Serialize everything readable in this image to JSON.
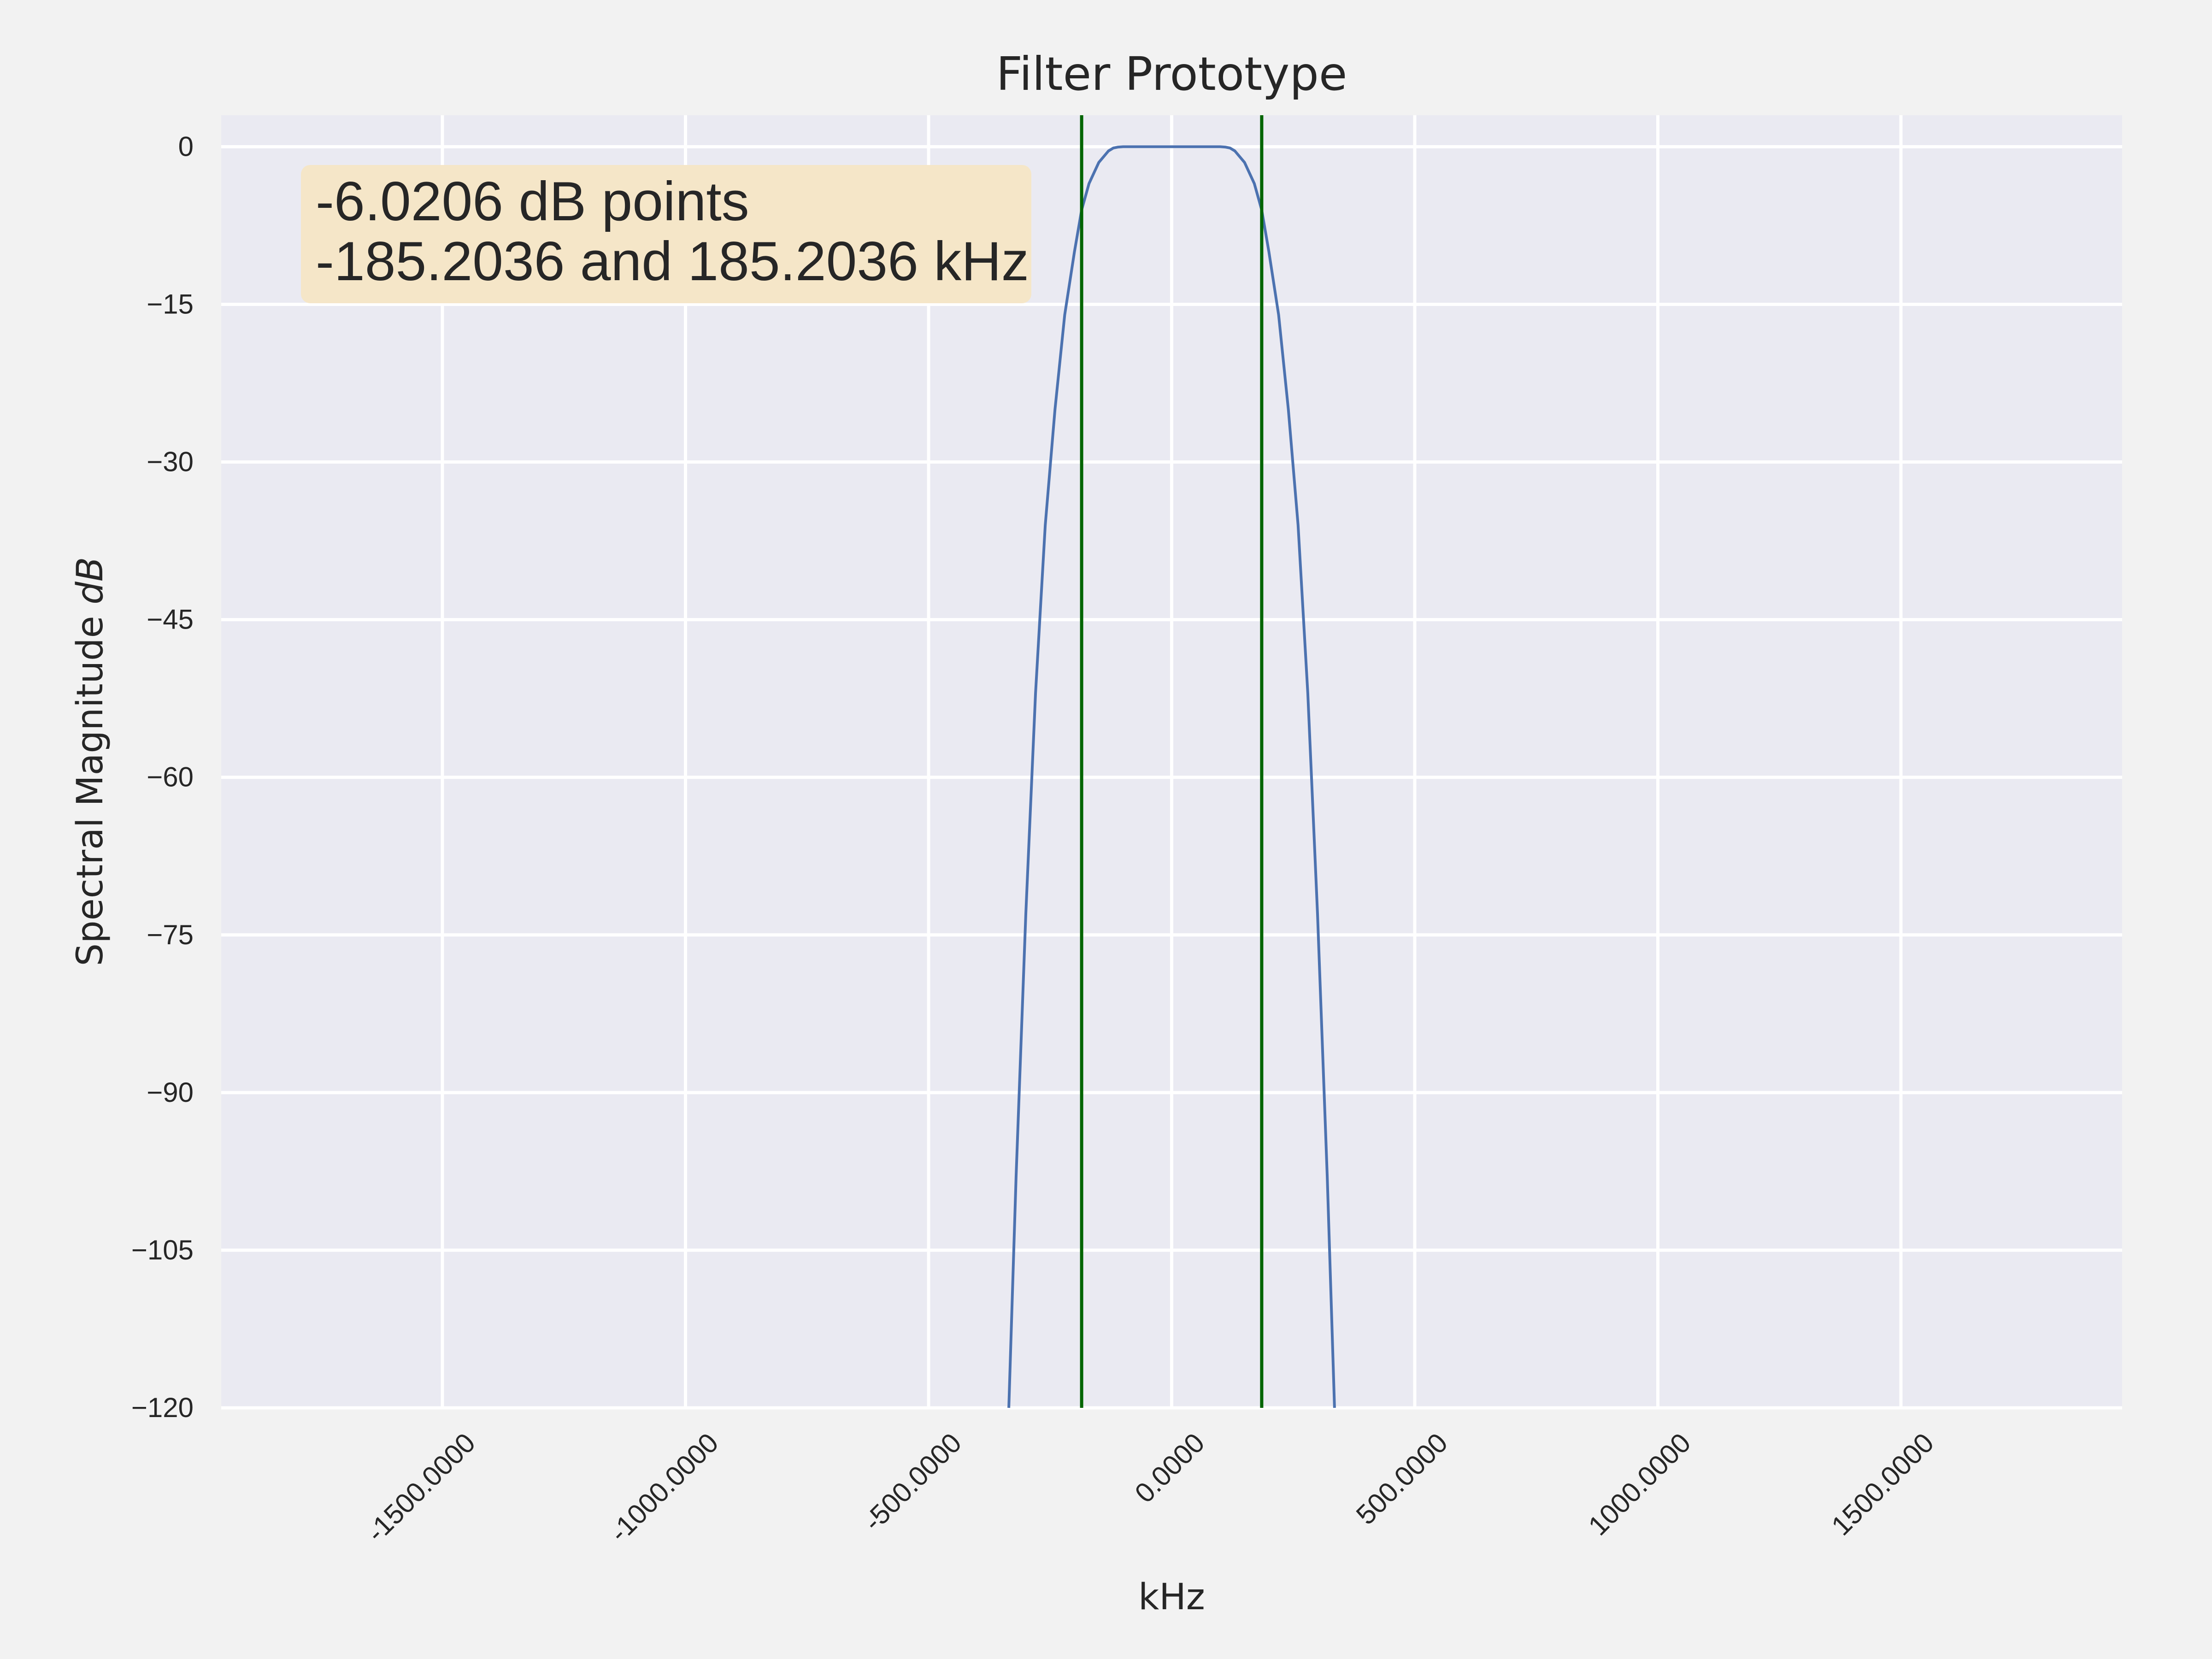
{
  "chart_data": {
    "type": "line",
    "title": "Filter Prototype",
    "xlabel": "kHz",
    "ylabel": "Spectral Magnitude",
    "ylabel_unit": "dB",
    "xlim": [
      -1955,
      1955
    ],
    "ylim": [
      -120,
      3
    ],
    "xticks": [
      -1500,
      -1000,
      -500,
      0,
      500,
      1000,
      1500
    ],
    "xtick_labels": [
      "-1500.0000",
      "-1000.0000",
      "-500.0000",
      "0.0000",
      "500.0000",
      "1000.0000",
      "1500.0000"
    ],
    "yticks": [
      0,
      -15,
      -30,
      -45,
      -60,
      -75,
      -90,
      -105,
      -120
    ],
    "ytick_labels": [
      "0",
      "−15",
      "−30",
      "−45",
      "−60",
      "−75",
      "−90",
      "−105",
      "−120"
    ],
    "grid": true,
    "series": [
      {
        "color": "#4c72b0",
        "x": [
          -335,
          -320,
          -300,
          -280,
          -260,
          -240,
          -220,
          -200,
          -185.2,
          -170,
          -150,
          -130,
          -120,
          -110,
          -100,
          -80,
          -50,
          0,
          50,
          80,
          100,
          110,
          120,
          130,
          150,
          170,
          185.2,
          200,
          220,
          240,
          260,
          280,
          300,
          320,
          335
        ],
        "y": [
          -120,
          -98,
          -73,
          -52,
          -36,
          -25,
          -16,
          -10,
          -6.02,
          -3.5,
          -1.5,
          -0.4,
          -0.12,
          -0.03,
          0,
          0,
          0,
          0,
          0,
          0,
          0,
          -0.03,
          -0.12,
          -0.4,
          -1.5,
          -3.5,
          -6.02,
          -10,
          -16,
          -25,
          -36,
          -52,
          -73,
          -98,
          -120
        ]
      }
    ],
    "vlines": [
      {
        "x": -185.2036,
        "color": "#006400"
      },
      {
        "x": 185.2036,
        "color": "#006400"
      }
    ],
    "annotation": {
      "lines": [
        "-6.0206 dB points",
        "-185.2036 and 185.2036 kHz"
      ],
      "background": "#f5e6c8"
    },
    "colors": {
      "figure_background": "#f2f2f2",
      "plot_background": "#eaeaf2",
      "grid": "#ffffff"
    }
  }
}
